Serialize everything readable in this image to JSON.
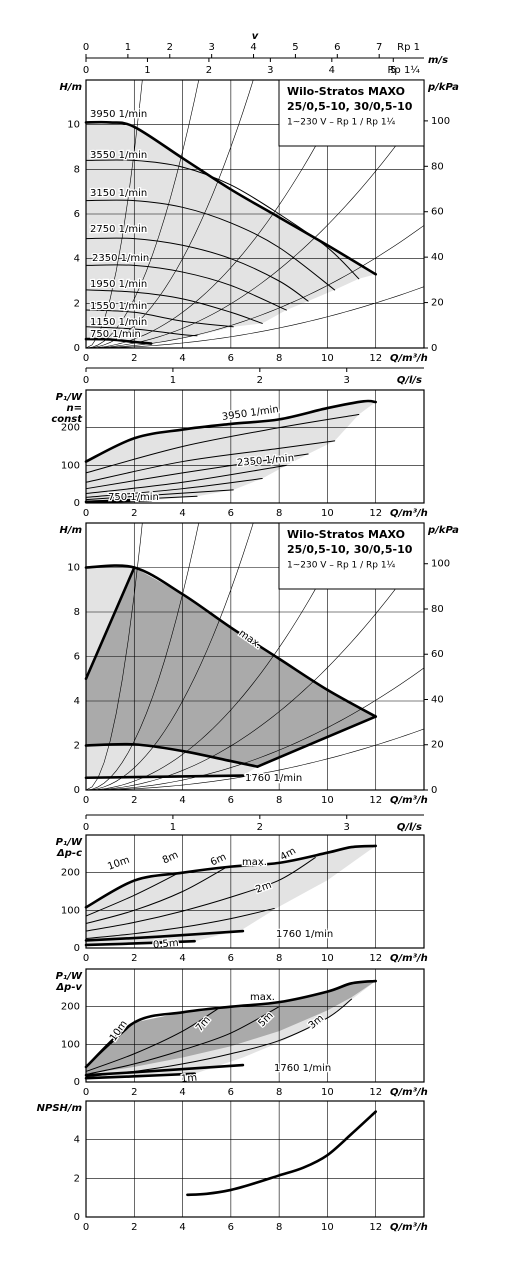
{
  "chart_data": [
    {
      "type": "line",
      "ylabel": [
        "H/m"
      ],
      "y2label": "p/kPa",
      "xlabel": "Q/m³/h",
      "top_title": "v",
      "top_axes": [
        {
          "label": "m/s",
          "lim": [
            0,
            8.07
          ],
          "ticks": [
            0,
            1,
            2,
            3,
            4,
            5,
            6,
            7
          ],
          "end_label": "Rp 1",
          "side": "above"
        },
        {
          "lim": [
            0,
            5.5
          ],
          "ticks": [
            0,
            1,
            2,
            3,
            4,
            5
          ],
          "end_label": "Rp 1¼",
          "side": "below"
        }
      ],
      "box": [
        "Wilo-Stratos MAXO",
        "25/0,5-10, 30/0,5-10",
        "1~230 V – Rp 1 / Rp 1¼"
      ],
      "xlim": [
        0,
        14
      ],
      "xticks": [
        0,
        2,
        4,
        6,
        8,
        10,
        12
      ],
      "ylim": [
        0,
        12
      ],
      "yticks": [
        0,
        2,
        4,
        6,
        8,
        10
      ],
      "y2lim": [
        0,
        118
      ],
      "y2ticks": [
        0,
        20,
        40,
        60,
        80,
        100
      ],
      "grid": true,
      "regions": [
        {
          "color": "#e3e3e3",
          "x": [
            0,
            1,
            2,
            4,
            6,
            8,
            10,
            12,
            11.3,
            10.3,
            9.2,
            8.3,
            7.3,
            6.1,
            4.6,
            2.7,
            2,
            1,
            0
          ],
          "values": [
            10.1,
            10.1,
            9.9,
            8.5,
            7.1,
            5.85,
            4.6,
            3.3,
            3.1,
            2.6,
            2.1,
            1.7,
            1.1,
            0.95,
            0.55,
            0.2,
            0.27,
            0.38,
            0.4
          ]
        }
      ],
      "series": [
        {
          "name": "3950 1/min",
          "bold": true,
          "x": [
            0,
            1,
            2,
            4,
            6,
            8,
            10,
            12
          ],
          "values": [
            10.1,
            10.1,
            9.9,
            8.5,
            7.1,
            5.85,
            4.6,
            3.3
          ]
        },
        {
          "name": "3550 1/min",
          "x": [
            0,
            2,
            4,
            6,
            8,
            10,
            11.3
          ],
          "values": [
            8.4,
            8.4,
            8.1,
            7.3,
            6.0,
            4.5,
            3.1
          ]
        },
        {
          "name": "3150 1/min",
          "x": [
            0,
            2,
            4,
            6,
            8,
            10.3
          ],
          "values": [
            6.6,
            6.6,
            6.3,
            5.6,
            4.5,
            2.6
          ]
        },
        {
          "name": "2750 1/min",
          "x": [
            0,
            2,
            4,
            6,
            8,
            9.2
          ],
          "values": [
            4.9,
            4.9,
            4.6,
            4.0,
            3.0,
            2.1
          ]
        },
        {
          "name": "2350 1/min",
          "x": [
            0,
            2,
            4,
            6,
            8.3
          ],
          "values": [
            3.7,
            3.7,
            3.4,
            2.8,
            1.7
          ]
        },
        {
          "name": "1950 1/min",
          "x": [
            0,
            2,
            4,
            6,
            7.3
          ],
          "values": [
            2.6,
            2.5,
            2.2,
            1.6,
            1.1
          ]
        },
        {
          "name": "1550 1/min",
          "x": [
            0,
            2,
            4,
            6.1
          ],
          "values": [
            1.7,
            1.6,
            1.2,
            0.95
          ]
        },
        {
          "name": "1150 1/min",
          "x": [
            0,
            2,
            4,
            4.6
          ],
          "values": [
            0.95,
            0.85,
            0.6,
            0.55
          ]
        },
        {
          "name": "750 1/min",
          "bold": true,
          "x": [
            0,
            1,
            2,
            2.7
          ],
          "values": [
            0.4,
            0.38,
            0.27,
            0.2
          ]
        }
      ]
    },
    {
      "type": "line",
      "ylabel": [
        "P₁/W",
        "n=",
        "const"
      ],
      "xlabel": "Q/m³/h",
      "top_axes": [
        {
          "label": "Q/l/s",
          "lim": [
            0,
            3.889
          ],
          "ticks": [
            0,
            1,
            2,
            3
          ],
          "side": "below"
        }
      ],
      "xlim": [
        0,
        14
      ],
      "xticks": [
        0,
        2,
        4,
        6,
        8,
        10,
        12
      ],
      "ylim": [
        0,
        300
      ],
      "yticks": [
        0,
        100,
        200
      ],
      "grid": true,
      "regions": [
        {
          "color": "#e3e3e3",
          "x": [
            0,
            2,
            4,
            6,
            8,
            10,
            11.5,
            12,
            11.3,
            10.3,
            9.2,
            8.3,
            7.3,
            6.1,
            4.6,
            2.7,
            0
          ],
          "values": [
            110,
            172,
            195,
            210,
            222,
            252,
            270,
            268,
            235,
            165,
            130,
            100,
            65,
            35,
            18,
            7,
            3
          ]
        }
      ],
      "series": [
        {
          "name": "3950 1/min",
          "bold": true,
          "x": [
            0,
            2,
            4,
            6,
            8,
            10,
            11.5,
            12
          ],
          "values": [
            110,
            172,
            195,
            210,
            222,
            252,
            270,
            268
          ]
        },
        {
          "x": [
            0,
            4,
            8,
            11.3
          ],
          "values": [
            80,
            150,
            200,
            235
          ]
        },
        {
          "x": [
            0,
            4,
            8,
            10.3
          ],
          "values": [
            55,
            110,
            145,
            165
          ]
        },
        {
          "x": [
            0,
            4,
            9.2
          ],
          "values": [
            38,
            80,
            130
          ]
        },
        {
          "name": "2350 1/min",
          "x": [
            0,
            4,
            8.3
          ],
          "values": [
            25,
            55,
            100
          ]
        },
        {
          "x": [
            0,
            4,
            7.3
          ],
          "values": [
            15,
            38,
            65
          ]
        },
        {
          "x": [
            0,
            3,
            6.1
          ],
          "values": [
            9,
            22,
            35
          ]
        },
        {
          "x": [
            0,
            2,
            4.6
          ],
          "values": [
            5,
            10,
            18
          ]
        },
        {
          "name": "750 1/min",
          "bold": true,
          "x": [
            0,
            1.5,
            2.7
          ],
          "values": [
            3,
            5,
            7
          ]
        }
      ]
    },
    {
      "type": "line",
      "ylabel": [
        "H/m"
      ],
      "y2label": "p/kPa",
      "xlabel": "Q/m³/h",
      "box": [
        "Wilo-Stratos MAXO",
        "25/0,5-10, 30/0,5-10",
        "1~230 V – Rp 1 / Rp 1¼"
      ],
      "xlim": [
        0,
        14
      ],
      "xticks": [
        0,
        2,
        4,
        6,
        8,
        10,
        12
      ],
      "ylim": [
        0,
        12
      ],
      "yticks": [
        0,
        2,
        4,
        6,
        8,
        10
      ],
      "y2lim": [
        0,
        118
      ],
      "y2ticks": [
        0,
        20,
        40,
        60,
        80,
        100
      ],
      "grid": true,
      "regions": [
        {
          "color": "#e3e3e3",
          "x": [
            0,
            2,
            0
          ],
          "values": [
            10,
            10,
            5
          ]
        },
        {
          "color": "#e3e3e3",
          "x": [
            0,
            2,
            4,
            6,
            7.1,
            6.5,
            0
          ],
          "values": [
            2,
            2.05,
            1.75,
            1.3,
            1.05,
            0.65,
            0.55
          ]
        },
        {
          "color": "#aaaaaa",
          "x": [
            0,
            2,
            4,
            6,
            8,
            10,
            12,
            7.1,
            6,
            4,
            2,
            0
          ],
          "values": [
            5,
            10,
            8.8,
            7.3,
            5.9,
            4.5,
            3.3,
            1.05,
            1.3,
            1.75,
            2.05,
            2
          ]
        }
      ],
      "series": [
        {
          "name": "max.",
          "bold": true,
          "x": [
            0,
            2,
            4,
            6,
            8,
            10,
            12
          ],
          "values": [
            10,
            10,
            8.8,
            7.3,
            5.9,
            4.5,
            3.3
          ]
        },
        {
          "bold": true,
          "x": [
            0,
            2
          ],
          "values": [
            5,
            10
          ]
        },
        {
          "bold": true,
          "x": [
            12,
            7.1
          ],
          "values": [
            3.3,
            1.05
          ]
        },
        {
          "bold": true,
          "x": [
            0,
            2,
            4,
            6,
            7.1
          ],
          "values": [
            2,
            2.05,
            1.75,
            1.3,
            1.05
          ]
        },
        {
          "name": "1760 1/min",
          "bold": true,
          "x": [
            0,
            6.5
          ],
          "values": [
            0.55,
            0.65
          ]
        }
      ]
    },
    {
      "type": "line",
      "ylabel": [
        "P₁/W",
        "Δp-c"
      ],
      "xlabel": "Q/m³/h",
      "top_axes": [
        {
          "label": "Q/l/s",
          "lim": [
            0,
            3.889
          ],
          "ticks": [
            0,
            1,
            2,
            3
          ],
          "side": "below"
        }
      ],
      "xlim": [
        0,
        14
      ],
      "xticks": [
        0,
        2,
        4,
        6,
        8,
        10,
        12
      ],
      "ylim": [
        0,
        300
      ],
      "yticks": [
        0,
        100,
        200
      ],
      "grid": true,
      "regions": [
        {
          "color": "#e3e3e3",
          "x": [
            0,
            2,
            4,
            6,
            8,
            10,
            11,
            12,
            10,
            8,
            6.5,
            4.5,
            0
          ],
          "values": [
            108,
            179,
            200,
            216,
            226,
            253,
            268,
            271,
            180,
            110,
            50,
            18,
            8
          ]
        }
      ],
      "series": [
        {
          "name": "max.",
          "bold": true,
          "x": [
            0,
            2,
            4,
            6,
            8,
            10,
            11,
            12
          ],
          "values": [
            108,
            179,
            200,
            216,
            226,
            253,
            268,
            271
          ]
        },
        {
          "name": "10m",
          "x": [
            0,
            1,
            1.8
          ],
          "values": [
            108,
            145,
            175
          ]
        },
        {
          "name": "8m",
          "x": [
            0,
            2,
            3.8
          ],
          "values": [
            85,
            140,
            198
          ]
        },
        {
          "name": "6m",
          "x": [
            0,
            2,
            4,
            5.8
          ],
          "values": [
            65,
            100,
            150,
            214
          ]
        },
        {
          "name": "4m",
          "x": [
            0,
            2,
            4,
            6,
            8,
            9.5
          ],
          "values": [
            45,
            68,
            98,
            135,
            180,
            240
          ]
        },
        {
          "name": "2m",
          "x": [
            0,
            2,
            4,
            6,
            7.8
          ],
          "values": [
            25,
            38,
            55,
            78,
            105
          ]
        },
        {
          "name": "0,5m",
          "bold": true,
          "x": [
            0,
            2,
            4.5
          ],
          "values": [
            8,
            12,
            18
          ]
        },
        {
          "name": "1760 1/min",
          "bold": true,
          "x": [
            0,
            3,
            6.5
          ],
          "values": [
            20,
            30,
            45
          ]
        }
      ]
    },
    {
      "type": "line",
      "ylabel": [
        "P₁/W",
        "Δp-v"
      ],
      "xlabel": "Q/m³/h",
      "xlim": [
        0,
        14
      ],
      "xticks": [
        0,
        2,
        4,
        6,
        8,
        10,
        12
      ],
      "ylim": [
        0,
        300
      ],
      "yticks": [
        0,
        100,
        200
      ],
      "grid": true,
      "regions": [
        {
          "color": "#e3e3e3",
          "x": [
            0,
            2,
            4,
            6,
            8,
            10,
            11,
            12,
            10,
            8,
            6.5,
            4.5,
            0
          ],
          "values": [
            40,
            158,
            185,
            200,
            212,
            240,
            262,
            268,
            170,
            105,
            65,
            22,
            10
          ]
        },
        {
          "color": "#aaaaaa",
          "x": [
            0,
            2,
            4,
            6,
            8,
            10,
            11,
            12,
            11,
            10,
            8,
            6,
            4,
            2,
            0
          ],
          "values": [
            40,
            158,
            185,
            200,
            212,
            240,
            262,
            268,
            225,
            190,
            135,
            95,
            65,
            40,
            22
          ]
        }
      ],
      "series": [
        {
          "name": "max.",
          "bold": true,
          "x": [
            0,
            2,
            4,
            6,
            8,
            10,
            11,
            12
          ],
          "values": [
            40,
            158,
            185,
            200,
            212,
            240,
            262,
            268
          ]
        },
        {
          "name": "10m",
          "x": [
            0,
            1,
            2
          ],
          "values": [
            40,
            100,
            158
          ]
        },
        {
          "name": "7m",
          "x": [
            0,
            2,
            4,
            5.5
          ],
          "values": [
            28,
            75,
            135,
            196
          ]
        },
        {
          "name": "5m",
          "x": [
            0,
            2,
            4,
            6,
            8
          ],
          "values": [
            20,
            48,
            85,
            130,
            200
          ]
        },
        {
          "name": "3m",
          "x": [
            0,
            2,
            4,
            6,
            8,
            10,
            11
          ],
          "values": [
            14,
            28,
            48,
            75,
            110,
            170,
            220
          ]
        },
        {
          "name": "1m",
          "bold": true,
          "x": [
            0,
            2,
            4.5
          ],
          "values": [
            10,
            15,
            22
          ]
        },
        {
          "name": "1760 1/min",
          "bold": true,
          "x": [
            0,
            3,
            6.5
          ],
          "values": [
            18,
            30,
            45
          ]
        }
      ]
    },
    {
      "type": "line",
      "ylabel": [
        "NPSH/m"
      ],
      "xlabel": "Q/m³/h",
      "xlim": [
        0,
        14
      ],
      "xticks": [
        0,
        2,
        4,
        6,
        8,
        10,
        12
      ],
      "ylim": [
        0,
        6
      ],
      "yticks": [
        0,
        2,
        4
      ],
      "grid": true,
      "series": [
        {
          "bold": true,
          "x": [
            4.2,
            5,
            6,
            7,
            8,
            9,
            10,
            11,
            12
          ],
          "values": [
            1.15,
            1.2,
            1.4,
            1.75,
            2.15,
            2.55,
            3.2,
            4.3,
            5.45
          ]
        }
      ]
    }
  ]
}
